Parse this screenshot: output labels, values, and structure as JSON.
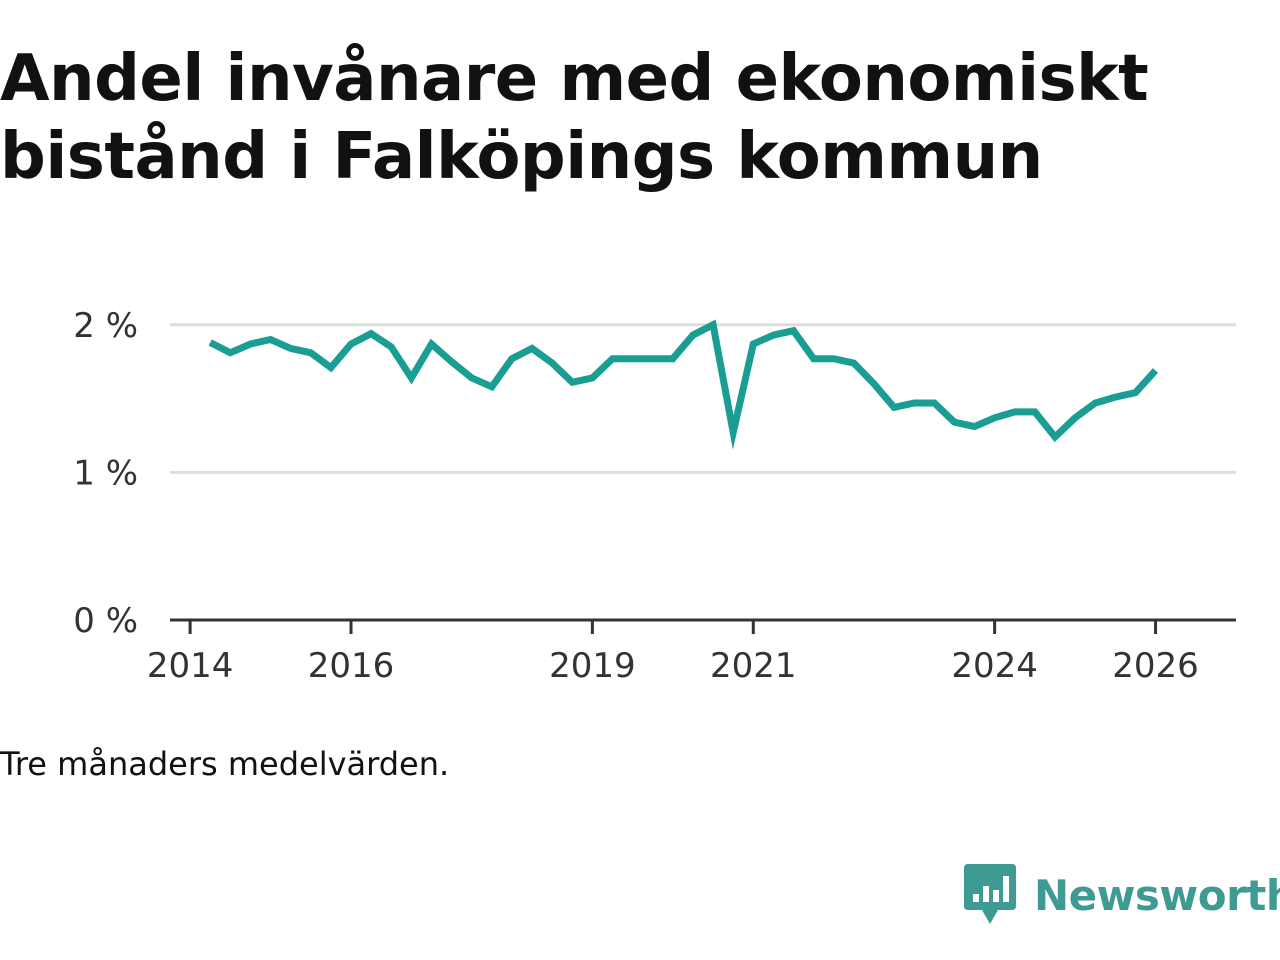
{
  "title": "Andel invånare med ekonomiskt bistånd i Falköpings kommun",
  "note": "Tre månaders medelvärden.",
  "brand": {
    "name": "Newsworthy",
    "icon": "newsworthy-logo-icon"
  },
  "colors": {
    "line": "#1a9e94",
    "grid": "#dddddd",
    "axis": "#333333",
    "brand": "#3d9b93",
    "text": "#111111"
  },
  "chart_data": {
    "type": "line",
    "title": "Andel invånare med ekonomiskt bistånd i Falköpings kommun",
    "xlabel": "",
    "ylabel": "",
    "ylim": [
      0,
      2.1
    ],
    "xlim": [
      2013.75,
      2027.0
    ],
    "grid": true,
    "y_ticks": [
      {
        "value": 0,
        "label": "0 %"
      },
      {
        "value": 1,
        "label": "1 %"
      },
      {
        "value": 2,
        "label": "2 %"
      }
    ],
    "x_ticks": [
      {
        "value": 2014,
        "label": "2014"
      },
      {
        "value": 2016,
        "label": "2016"
      },
      {
        "value": 2019,
        "label": "2019"
      },
      {
        "value": 2021,
        "label": "2021"
      },
      {
        "value": 2024,
        "label": "2024"
      },
      {
        "value": 2026,
        "label": "2026"
      }
    ],
    "series": [
      {
        "name": "Andel invånare med ekonomiskt bistånd",
        "x": [
          2014.25,
          2014.5,
          2014.75,
          2015.0,
          2015.25,
          2015.5,
          2015.75,
          2016.0,
          2016.25,
          2016.5,
          2016.75,
          2017.0,
          2017.25,
          2017.5,
          2017.75,
          2018.0,
          2018.25,
          2018.5,
          2018.75,
          2019.0,
          2019.25,
          2019.5,
          2019.75,
          2020.0,
          2020.25,
          2020.5,
          2020.75,
          2021.0,
          2021.25,
          2021.5,
          2021.75,
          2022.0,
          2022.25,
          2022.5,
          2022.75,
          2023.0,
          2023.25,
          2023.5,
          2023.75,
          2024.0,
          2024.25,
          2024.5,
          2024.75,
          2025.0,
          2025.25,
          2025.5,
          2025.75,
          2026.0
        ],
        "values": [
          1.88,
          1.81,
          1.87,
          1.9,
          1.84,
          1.81,
          1.71,
          1.87,
          1.94,
          1.85,
          1.64,
          1.87,
          1.75,
          1.64,
          1.58,
          1.77,
          1.84,
          1.74,
          1.61,
          1.64,
          1.77,
          1.77,
          1.77,
          1.77,
          1.93,
          2.0,
          1.27,
          1.87,
          1.93,
          1.96,
          1.77,
          1.77,
          1.74,
          1.6,
          1.44,
          1.47,
          1.47,
          1.34,
          1.31,
          1.37,
          1.41,
          1.41,
          1.24,
          1.37,
          1.47,
          1.51,
          1.54,
          1.69
        ]
      }
    ]
  }
}
